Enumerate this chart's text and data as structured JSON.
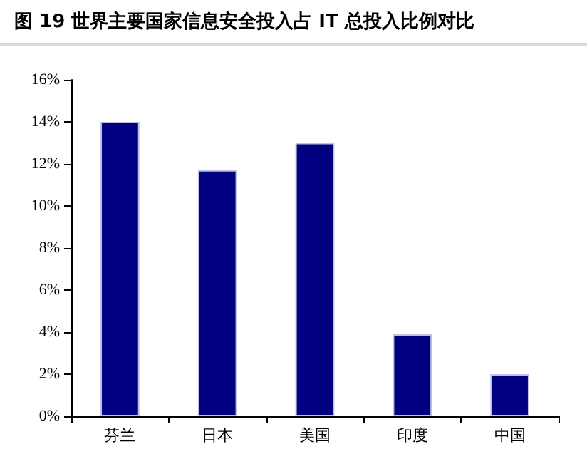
{
  "chart_data": {
    "type": "bar",
    "title": "图 19 世界主要国家信息安全投入占 IT 总投入比例对比",
    "categories": [
      "芬兰",
      "日本",
      "美国",
      "印度",
      "中国"
    ],
    "values": [
      14,
      11.7,
      13,
      3.9,
      2
    ],
    "color": "#000080",
    "ylim": [
      0,
      16
    ],
    "yticks": [
      {
        "value": 0,
        "label": "0%"
      },
      {
        "value": 2,
        "label": "2%"
      },
      {
        "value": 4,
        "label": "4%"
      },
      {
        "value": 6,
        "label": "6%"
      },
      {
        "value": 8,
        "label": "8%"
      },
      {
        "value": 10,
        "label": "10%"
      },
      {
        "value": 12,
        "label": "12%"
      },
      {
        "value": 14,
        "label": "14%"
      },
      {
        "value": 16,
        "label": "16%"
      }
    ],
    "grid": false
  }
}
